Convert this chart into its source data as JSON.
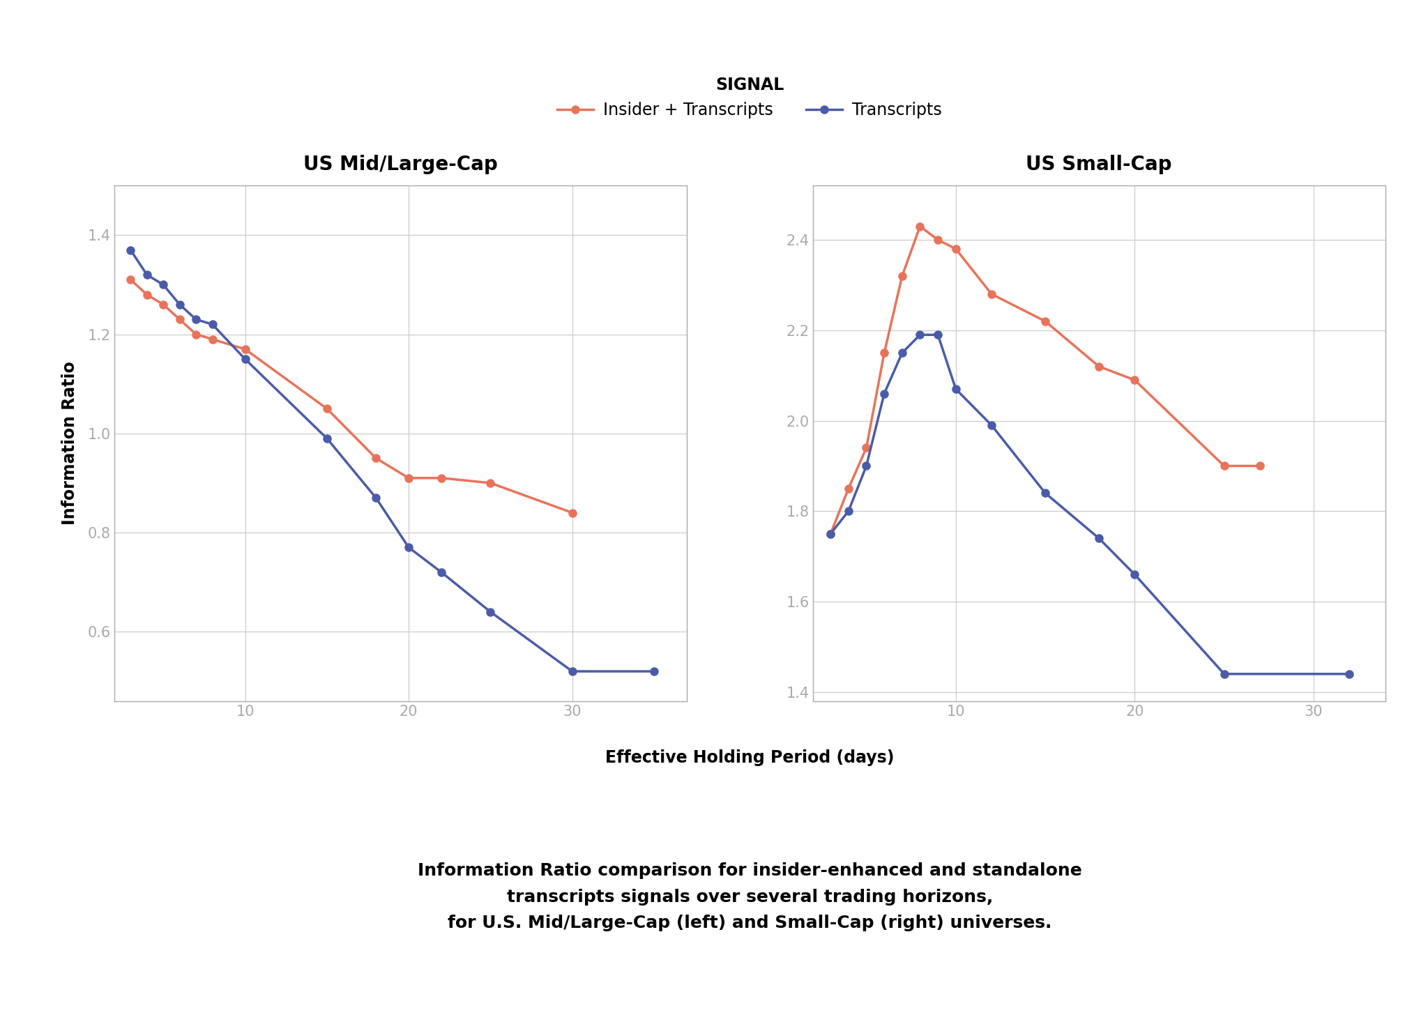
{
  "left_title": "US Mid/Large-Cap",
  "right_title": "US Small-Cap",
  "xlabel": "Effective Holding Period (days)",
  "ylabel": "Information Ratio",
  "legend_title": "SIGNAL",
  "legend_labels": [
    "Insider + Transcripts",
    "Transcripts"
  ],
  "color_insider": "#E8735A",
  "color_transcripts": "#4A5CA8",
  "caption": "Information Ratio comparison for insider-enhanced and standalone\ntranscripts signals over several trading horizons,\nfor U.S. Mid/Large-Cap (left) and Small-Cap (right) universes.",
  "left_insider_x": [
    3,
    4,
    5,
    6,
    7,
    8,
    10,
    15,
    18,
    20,
    22,
    25,
    30
  ],
  "left_insider_y": [
    1.31,
    1.28,
    1.26,
    1.23,
    1.2,
    1.19,
    1.17,
    1.05,
    0.95,
    0.91,
    0.91,
    0.9,
    0.84
  ],
  "left_transcripts_x": [
    3,
    4,
    5,
    6,
    7,
    8,
    10,
    15,
    18,
    20,
    22,
    25,
    30,
    35
  ],
  "left_transcripts_y": [
    1.37,
    1.32,
    1.3,
    1.26,
    1.23,
    1.22,
    1.15,
    0.99,
    0.87,
    0.77,
    0.72,
    0.64,
    0.52,
    0.52
  ],
  "right_insider_x": [
    3,
    4,
    5,
    6,
    7,
    8,
    9,
    10,
    12,
    15,
    18,
    20,
    25,
    27
  ],
  "right_insider_y": [
    1.75,
    1.85,
    1.94,
    2.15,
    2.32,
    2.43,
    2.4,
    2.38,
    2.28,
    2.22,
    2.12,
    2.09,
    1.9,
    1.9
  ],
  "right_transcripts_x": [
    3,
    4,
    5,
    6,
    7,
    8,
    9,
    10,
    12,
    15,
    18,
    20,
    25,
    32
  ],
  "right_transcripts_y": [
    1.75,
    1.8,
    1.9,
    2.06,
    2.15,
    2.19,
    2.19,
    2.07,
    1.99,
    1.84,
    1.74,
    1.66,
    1.44,
    1.44
  ],
  "left_xlim": [
    2,
    37
  ],
  "left_ylim": [
    0.46,
    1.5
  ],
  "left_xticks": [
    10,
    20,
    30
  ],
  "left_yticks": [
    0.6,
    0.8,
    1.0,
    1.2,
    1.4
  ],
  "right_xlim": [
    2,
    34
  ],
  "right_ylim": [
    1.38,
    2.52
  ],
  "right_xticks": [
    10,
    20,
    30
  ],
  "right_yticks": [
    1.4,
    1.6,
    1.8,
    2.0,
    2.2,
    2.4
  ],
  "bg_color": "#FFFFFF",
  "panel_bg": "#FFFFFF",
  "grid_color": "#CCCCCC",
  "tick_color": "#AAAAAA",
  "spine_color": "#AAAAAA",
  "title_fontsize": 20,
  "label_fontsize": 17,
  "tick_fontsize": 15,
  "legend_fontsize": 17,
  "caption_fontsize": 18,
  "marker_size": 8,
  "line_width": 2.5
}
